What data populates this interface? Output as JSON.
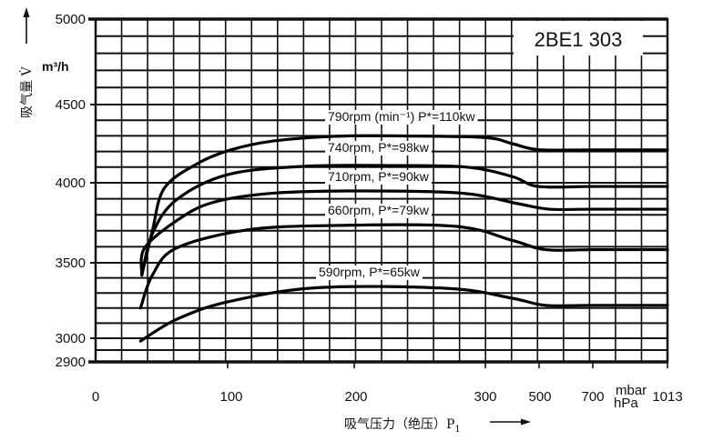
{
  "chart_data": {
    "type": "line",
    "title": "2BE1 303",
    "xlabel": "吸气压力（绝压）P",
    "xlabel_sub": "1",
    "ylabel": "吸气量 V̇",
    "yunit": "m³/h",
    "xunit_top": "mbar",
    "xunit_bottom": "hPa",
    "x_ticks": [
      0,
      100,
      200,
      300,
      500,
      700,
      1013
    ],
    "x_tick_labels": [
      "0",
      "100",
      "200",
      "300",
      "500",
      "700",
      "1013"
    ],
    "y_ticks": [
      5000,
      4500,
      4000,
      3500,
      3000,
      2900
    ],
    "y_tick_labels": [
      "5000",
      "4500",
      "4000",
      "3500",
      "3000",
      "2900"
    ],
    "xlim": [
      0,
      1013
    ],
    "ylim": [
      2900,
      5000
    ],
    "grid": true,
    "series": [
      {
        "name": "790rpm (min⁻¹) P*=110kw",
        "points": [
          [
            35,
            3418
          ],
          [
            43,
            3700
          ],
          [
            52,
            3966
          ],
          [
            77,
            4122
          ],
          [
            102,
            4209
          ],
          [
            136,
            4267
          ],
          [
            184,
            4297
          ],
          [
            228,
            4300
          ],
          [
            298,
            4290
          ],
          [
            400,
            4250
          ],
          [
            497,
            4212
          ],
          [
            700,
            4210
          ],
          [
            1013,
            4210
          ]
        ]
      },
      {
        "name": "740rpm, P*=98kw",
        "points": [
          [
            35,
            3418
          ],
          [
            43,
            3682
          ],
          [
            61,
            3892
          ],
          [
            100,
            4052
          ],
          [
            160,
            4105
          ],
          [
            231,
            4110
          ],
          [
            286,
            4100
          ],
          [
            400,
            4040
          ],
          [
            497,
            3977
          ],
          [
            700,
            3977
          ],
          [
            1013,
            3977
          ]
        ]
      },
      {
        "name": "710rpm, P*=90kw",
        "points": [
          [
            35,
            3418
          ],
          [
            37,
            3591
          ],
          [
            61,
            3761
          ],
          [
            88,
            3875
          ],
          [
            136,
            3935
          ],
          [
            208,
            3949
          ],
          [
            282,
            3935
          ],
          [
            420,
            3870
          ],
          [
            537,
            3835
          ],
          [
            700,
            3835
          ],
          [
            1013,
            3835
          ]
        ]
      },
      {
        "name": "660rpm, P*=79kw",
        "points": [
          [
            34,
            3200
          ],
          [
            43,
            3418
          ],
          [
            61,
            3591
          ],
          [
            115,
            3705
          ],
          [
            184,
            3733
          ],
          [
            277,
            3728
          ],
          [
            400,
            3640
          ],
          [
            524,
            3582
          ],
          [
            700,
            3582
          ],
          [
            1013,
            3582
          ]
        ]
      },
      {
        "name": "590rpm, P*=65kw",
        "points": [
          [
            34,
            2988
          ],
          [
            61,
            3124
          ],
          [
            100,
            3241
          ],
          [
            171,
            3335
          ],
          [
            272,
            3330
          ],
          [
            400,
            3265
          ],
          [
            524,
            3218
          ],
          [
            700,
            3218
          ],
          [
            1013,
            3218
          ]
        ]
      }
    ]
  }
}
